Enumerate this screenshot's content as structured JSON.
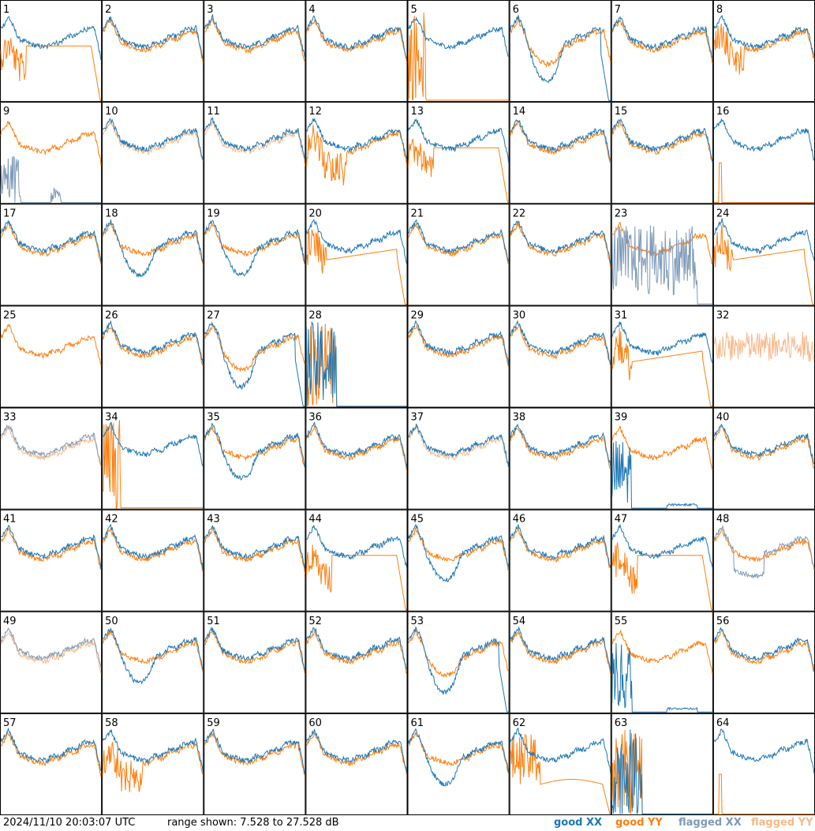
{
  "chart_data": {
    "type": "line",
    "layout": "8x8 small multiples",
    "panel_labels": [
      "1",
      "2",
      "3",
      "4",
      "5",
      "6",
      "7",
      "8",
      "9",
      "10",
      "11",
      "12",
      "13",
      "14",
      "15",
      "16",
      "17",
      "18",
      "19",
      "20",
      "21",
      "22",
      "23",
      "24",
      "25",
      "26",
      "27",
      "28",
      "29",
      "30",
      "31",
      "32",
      "33",
      "34",
      "35",
      "36",
      "37",
      "38",
      "39",
      "40",
      "41",
      "42",
      "43",
      "44",
      "45",
      "46",
      "47",
      "48",
      "49",
      "50",
      "51",
      "52",
      "53",
      "54",
      "55",
      "56",
      "57",
      "58",
      "59",
      "60",
      "61",
      "62",
      "63",
      "64"
    ],
    "y_range_db": [
      7.528,
      27.528
    ],
    "series": [
      {
        "name": "good XX",
        "color": "#1f77b4"
      },
      {
        "name": "good YY",
        "color": "#ff7f0e"
      },
      {
        "name": "flagged XX",
        "color": "#7f9ab8"
      },
      {
        "name": "flagged YY",
        "color": "#f7b98a"
      }
    ],
    "panel_styles": {
      "1": "droopY",
      "2": "normal",
      "3": "normal",
      "4": "normal",
      "5": "deadY",
      "6": "dipBoth",
      "7": "normal",
      "8": "drooped",
      "9": "flagXspikes",
      "10": "flagY",
      "11": "flagY",
      "12": "spikyY",
      "13": "droopY",
      "14": "normal",
      "15": "normal",
      "16": "onlyX",
      "17": "normal",
      "18": "dipX",
      "19": "dipX",
      "20": "lowY",
      "21": "normal",
      "22": "normal",
      "23": "flagXnoise",
      "24": "lowY",
      "25": "onlyY",
      "26": "normal",
      "27": "dipBoth",
      "28": "deadBoth",
      "29": "normal",
      "30": "normal",
      "31": "lowY",
      "32": "flagYonly",
      "33": "flagBoth",
      "34": "deadY",
      "35": "dipX",
      "36": "normal",
      "37": "halfFlagY",
      "38": "normal",
      "39": "deadX",
      "40": "normal",
      "41": "normal",
      "42": "normal",
      "43": "normal",
      "44": "droopY",
      "45": "dipX",
      "46": "normal",
      "47": "droopY",
      "48": "flagXdip",
      "49": "flagBoth",
      "50": "dipX",
      "51": "normal",
      "52": "normal",
      "53": "dipBoth",
      "54": "normal",
      "55": "deadX",
      "56": "normal",
      "57": "normal",
      "58": "spikyY",
      "59": "normal",
      "60": "normal",
      "61": "dipX",
      "62": "lowYspiky",
      "63": "deadBoth",
      "64": "onlyX"
    },
    "footer": {
      "timestamp": "2024/11/10 20:03:07 UTC",
      "range_text": "range shown: 7.528 to 27.528 dB",
      "legend": [
        "good XX",
        "good YY",
        "flagged XX",
        "flagged YY"
      ]
    }
  }
}
